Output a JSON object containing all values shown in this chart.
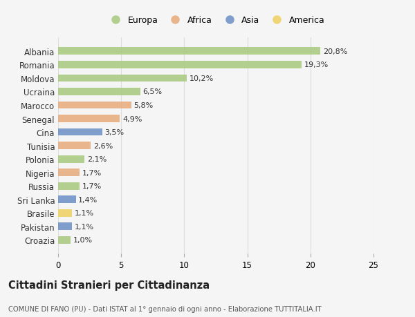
{
  "countries": [
    "Albania",
    "Romania",
    "Moldova",
    "Ucraina",
    "Marocco",
    "Senegal",
    "Cina",
    "Tunisia",
    "Polonia",
    "Nigeria",
    "Russia",
    "Sri Lanka",
    "Brasile",
    "Pakistan",
    "Croazia"
  ],
  "values": [
    20.8,
    19.3,
    10.2,
    6.5,
    5.8,
    4.9,
    3.5,
    2.6,
    2.1,
    1.7,
    1.7,
    1.4,
    1.1,
    1.1,
    1.0
  ],
  "labels": [
    "20,8%",
    "19,3%",
    "10,2%",
    "6,5%",
    "5,8%",
    "4,9%",
    "3,5%",
    "2,6%",
    "2,1%",
    "1,7%",
    "1,7%",
    "1,4%",
    "1,1%",
    "1,1%",
    "1,0%"
  ],
  "continents": [
    "Europa",
    "Europa",
    "Europa",
    "Europa",
    "Africa",
    "Africa",
    "Asia",
    "Africa",
    "Europa",
    "Africa",
    "Europa",
    "Asia",
    "America",
    "Asia",
    "Europa"
  ],
  "colors": {
    "Europa": "#a8c97f",
    "Africa": "#e8aa7a",
    "Asia": "#6b8fc4",
    "America": "#f0d060"
  },
  "title": "Cittadini Stranieri per Cittadinanza",
  "subtitle": "COMUNE DI FANO (PU) - Dati ISTAT al 1° gennaio di ogni anno - Elaborazione TUTTITALIA.IT",
  "xlim": [
    0,
    25
  ],
  "xticks": [
    0,
    5,
    10,
    15,
    20,
    25
  ],
  "background_color": "#f5f5f5",
  "grid_color": "#dddddd",
  "legend_order": [
    "Europa",
    "Africa",
    "Asia",
    "America"
  ]
}
